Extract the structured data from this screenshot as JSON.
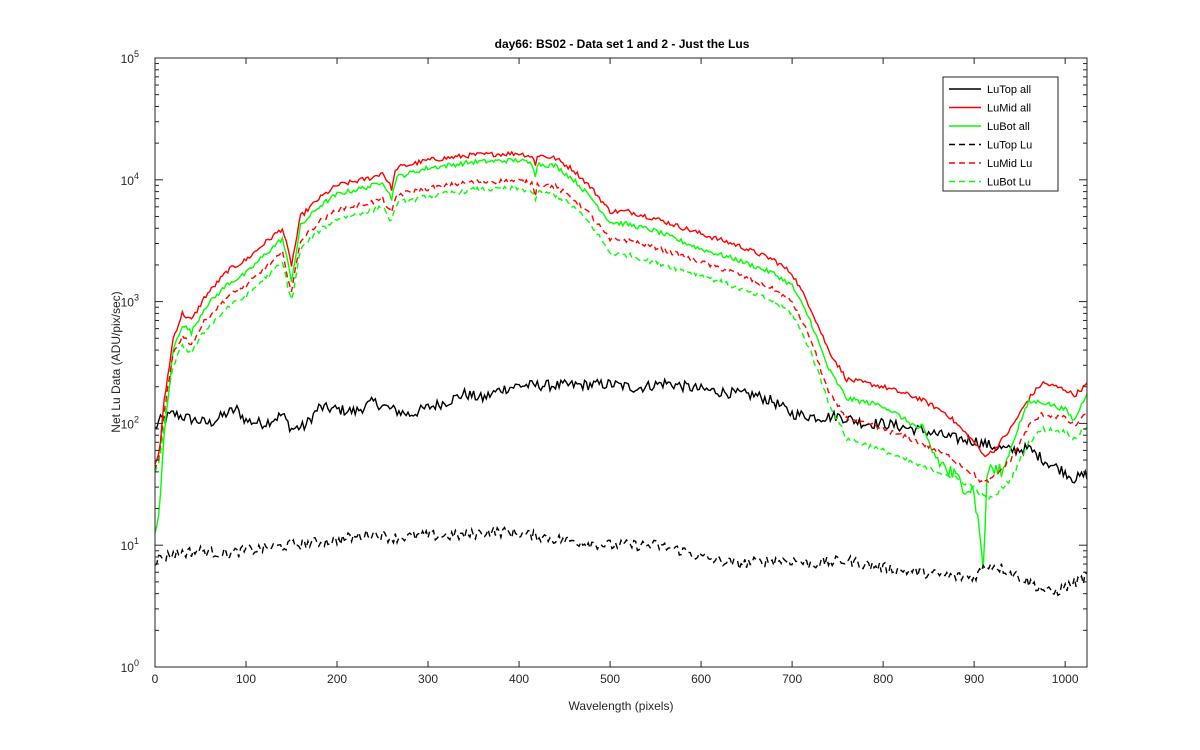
{
  "chart_data": {
    "type": "line",
    "title": "day66: BS02 - Data set 1 and 2 - Just the Lus",
    "xlabel": "Wavelength (pixels)",
    "ylabel": "Net Lu Data (ADU/pix/sec)",
    "xlim": [
      0,
      1024
    ],
    "ylim": [
      1,
      100000
    ],
    "yscale": "log",
    "grid": false,
    "legend_position": "top-right",
    "x_ticks": [
      "0",
      "100",
      "200",
      "300",
      "400",
      "500",
      "600",
      "700",
      "800",
      "900",
      "1000"
    ],
    "y_ticks": [
      {
        "base": "10",
        "exp": "0"
      },
      {
        "base": "10",
        "exp": "1"
      },
      {
        "base": "10",
        "exp": "2"
      },
      {
        "base": "10",
        "exp": "3"
      },
      {
        "base": "10",
        "exp": "4"
      },
      {
        "base": "10",
        "exp": "5"
      }
    ],
    "series": [
      {
        "name": "LuTop  all",
        "color": "#000000",
        "style": "solid",
        "points": [
          [
            0,
            90
          ],
          [
            5,
            105
          ],
          [
            20,
            120
          ],
          [
            40,
            108
          ],
          [
            60,
            100
          ],
          [
            80,
            122
          ],
          [
            90,
            130
          ],
          [
            100,
            105
          ],
          [
            120,
            100
          ],
          [
            140,
            118
          ],
          [
            150,
            90
          ],
          [
            165,
            95
          ],
          [
            180,
            135
          ],
          [
            200,
            130
          ],
          [
            220,
            125
          ],
          [
            240,
            150
          ],
          [
            260,
            130
          ],
          [
            280,
            118
          ],
          [
            300,
            135
          ],
          [
            320,
            150
          ],
          [
            340,
            175
          ],
          [
            360,
            160
          ],
          [
            380,
            190
          ],
          [
            400,
            205
          ],
          [
            450,
            205
          ],
          [
            500,
            210
          ],
          [
            530,
            195
          ],
          [
            560,
            215
          ],
          [
            600,
            190
          ],
          [
            640,
            175
          ],
          [
            660,
            170
          ],
          [
            680,
            150
          ],
          [
            700,
            120
          ],
          [
            730,
            112
          ],
          [
            750,
            115
          ],
          [
            780,
            100
          ],
          [
            800,
            100
          ],
          [
            840,
            88
          ],
          [
            880,
            75
          ],
          [
            900,
            72
          ],
          [
            920,
            65
          ],
          [
            940,
            60
          ],
          [
            960,
            62
          ],
          [
            980,
            48
          ],
          [
            1000,
            40
          ],
          [
            1010,
            35
          ],
          [
            1024,
            38
          ]
        ]
      },
      {
        "name": "LuMid  all",
        "color": "#ff0000",
        "style": "solid",
        "points": [
          [
            0,
            45
          ],
          [
            5,
            60
          ],
          [
            10,
            150
          ],
          [
            20,
            500
          ],
          [
            30,
            800
          ],
          [
            40,
            700
          ],
          [
            55,
            1100
          ],
          [
            80,
            1800
          ],
          [
            100,
            2200
          ],
          [
            120,
            3000
          ],
          [
            140,
            4000
          ],
          [
            150,
            2000
          ],
          [
            160,
            5000
          ],
          [
            180,
            7000
          ],
          [
            200,
            9000
          ],
          [
            240,
            10500
          ],
          [
            250,
            11500
          ],
          [
            260,
            8500
          ],
          [
            265,
            12500
          ],
          [
            300,
            14500
          ],
          [
            350,
            16000
          ],
          [
            400,
            16500
          ],
          [
            415,
            15500
          ],
          [
            418,
            13000
          ],
          [
            420,
            16000
          ],
          [
            440,
            15000
          ],
          [
            460,
            12000
          ],
          [
            480,
            8500
          ],
          [
            500,
            5500
          ],
          [
            520,
            5500
          ],
          [
            550,
            4800
          ],
          [
            600,
            3600
          ],
          [
            640,
            2900
          ],
          [
            680,
            2200
          ],
          [
            700,
            1700
          ],
          [
            720,
            900
          ],
          [
            740,
            400
          ],
          [
            760,
            230
          ],
          [
            800,
            200
          ],
          [
            840,
            160
          ],
          [
            870,
            120
          ],
          [
            900,
            70
          ],
          [
            910,
            55
          ],
          [
            920,
            58
          ],
          [
            940,
            90
          ],
          [
            960,
            160
          ],
          [
            975,
            215
          ],
          [
            1000,
            190
          ],
          [
            1010,
            170
          ],
          [
            1024,
            210
          ]
        ]
      },
      {
        "name": "LuBot  all",
        "color": "#00ff00",
        "style": "solid",
        "points": [
          [
            0,
            12
          ],
          [
            5,
            20
          ],
          [
            10,
            80
          ],
          [
            20,
            400
          ],
          [
            30,
            650
          ],
          [
            40,
            560
          ],
          [
            55,
            900
          ],
          [
            80,
            1400
          ],
          [
            100,
            1700
          ],
          [
            120,
            2400
          ],
          [
            140,
            3300
          ],
          [
            150,
            1500
          ],
          [
            160,
            4200
          ],
          [
            180,
            6000
          ],
          [
            200,
            7600
          ],
          [
            240,
            9000
          ],
          [
            250,
            9800
          ],
          [
            260,
            7000
          ],
          [
            265,
            10500
          ],
          [
            300,
            12500
          ],
          [
            350,
            14000
          ],
          [
            400,
            14500
          ],
          [
            415,
            13500
          ],
          [
            418,
            11000
          ],
          [
            420,
            13500
          ],
          [
            440,
            13000
          ],
          [
            460,
            10000
          ],
          [
            480,
            7000
          ],
          [
            500,
            4500
          ],
          [
            520,
            4300
          ],
          [
            550,
            3800
          ],
          [
            600,
            2700
          ],
          [
            640,
            2200
          ],
          [
            680,
            1700
          ],
          [
            700,
            1350
          ],
          [
            720,
            700
          ],
          [
            740,
            280
          ],
          [
            760,
            160
          ],
          [
            800,
            140
          ],
          [
            840,
            90
          ],
          [
            860,
            50
          ],
          [
            880,
            35
          ],
          [
            900,
            28
          ],
          [
            910,
            7
          ],
          [
            915,
            45
          ],
          [
            930,
            38
          ],
          [
            950,
            100
          ],
          [
            960,
            150
          ],
          [
            975,
            150
          ],
          [
            1000,
            130
          ],
          [
            1010,
            105
          ],
          [
            1024,
            180
          ]
        ]
      },
      {
        "name": "LuTop  Lu",
        "color": "#000000",
        "style": "dashed",
        "points": [
          [
            0,
            7.5
          ],
          [
            20,
            8.5
          ],
          [
            50,
            9
          ],
          [
            80,
            8.5
          ],
          [
            100,
            9
          ],
          [
            150,
            10
          ],
          [
            200,
            11
          ],
          [
            240,
            12.5
          ],
          [
            260,
            11.5
          ],
          [
            300,
            12
          ],
          [
            340,
            12
          ],
          [
            370,
            13
          ],
          [
            400,
            12.5
          ],
          [
            450,
            11
          ],
          [
            500,
            10
          ],
          [
            550,
            10
          ],
          [
            580,
            9
          ],
          [
            600,
            8
          ],
          [
            640,
            7
          ],
          [
            680,
            7.5
          ],
          [
            700,
            7.5
          ],
          [
            720,
            7
          ],
          [
            760,
            7.5
          ],
          [
            800,
            6.5
          ],
          [
            840,
            6
          ],
          [
            880,
            5.5
          ],
          [
            900,
            5.5
          ],
          [
            915,
            7
          ],
          [
            930,
            6.5
          ],
          [
            960,
            5
          ],
          [
            985,
            4
          ],
          [
            1000,
            4.5
          ],
          [
            1024,
            5.5
          ]
        ]
      },
      {
        "name": "LuMid  Lu",
        "color": "#ff0000",
        "style": "dashed",
        "points": [
          [
            0,
            40
          ],
          [
            5,
            55
          ],
          [
            10,
            120
          ],
          [
            20,
            380
          ],
          [
            30,
            520
          ],
          [
            40,
            450
          ],
          [
            55,
            700
          ],
          [
            80,
            1100
          ],
          [
            100,
            1350
          ],
          [
            120,
            1850
          ],
          [
            140,
            2500
          ],
          [
            150,
            1200
          ],
          [
            160,
            3200
          ],
          [
            180,
            4500
          ],
          [
            200,
            5700
          ],
          [
            240,
            6600
          ],
          [
            250,
            7000
          ],
          [
            260,
            5200
          ],
          [
            265,
            7500
          ],
          [
            300,
            8500
          ],
          [
            350,
            9600
          ],
          [
            400,
            9800
          ],
          [
            415,
            9300
          ],
          [
            418,
            7600
          ],
          [
            420,
            9200
          ],
          [
            440,
            8800
          ],
          [
            460,
            7000
          ],
          [
            480,
            5000
          ],
          [
            500,
            3200
          ],
          [
            520,
            3200
          ],
          [
            550,
            2800
          ],
          [
            600,
            2100
          ],
          [
            640,
            1700
          ],
          [
            680,
            1250
          ],
          [
            700,
            1000
          ],
          [
            720,
            500
          ],
          [
            740,
            180
          ],
          [
            760,
            110
          ],
          [
            800,
            90
          ],
          [
            840,
            70
          ],
          [
            870,
            55
          ],
          [
            900,
            38
          ],
          [
            910,
            32
          ],
          [
            920,
            35
          ],
          [
            940,
            50
          ],
          [
            960,
            95
          ],
          [
            975,
            120
          ],
          [
            1000,
            110
          ],
          [
            1010,
            95
          ],
          [
            1024,
            120
          ]
        ]
      },
      {
        "name": "LuBot  Lu",
        "color": "#00ff00",
        "style": "dashed",
        "points": [
          [
            0,
            38
          ],
          [
            5,
            50
          ],
          [
            10,
            100
          ],
          [
            20,
            300
          ],
          [
            30,
            430
          ],
          [
            40,
            380
          ],
          [
            55,
            580
          ],
          [
            80,
            900
          ],
          [
            100,
            1100
          ],
          [
            120,
            1550
          ],
          [
            140,
            2100
          ],
          [
            150,
            1000
          ],
          [
            160,
            2700
          ],
          [
            180,
            3800
          ],
          [
            200,
            4800
          ],
          [
            240,
            5600
          ],
          [
            250,
            6000
          ],
          [
            260,
            4500
          ],
          [
            265,
            6400
          ],
          [
            300,
            7300
          ],
          [
            350,
            8300
          ],
          [
            400,
            8500
          ],
          [
            415,
            8000
          ],
          [
            418,
            6500
          ],
          [
            420,
            7900
          ],
          [
            440,
            7500
          ],
          [
            460,
            6000
          ],
          [
            480,
            4200
          ],
          [
            500,
            2500
          ],
          [
            520,
            2400
          ],
          [
            550,
            2100
          ],
          [
            600,
            1650
          ],
          [
            640,
            1300
          ],
          [
            680,
            1000
          ],
          [
            700,
            800
          ],
          [
            720,
            400
          ],
          [
            740,
            150
          ],
          [
            760,
            75
          ],
          [
            800,
            60
          ],
          [
            840,
            45
          ],
          [
            870,
            38
          ],
          [
            900,
            30
          ],
          [
            910,
            25
          ],
          [
            920,
            24
          ],
          [
            940,
            35
          ],
          [
            960,
            70
          ],
          [
            975,
            90
          ],
          [
            1000,
            85
          ],
          [
            1010,
            75
          ],
          [
            1024,
            95
          ]
        ]
      }
    ]
  }
}
